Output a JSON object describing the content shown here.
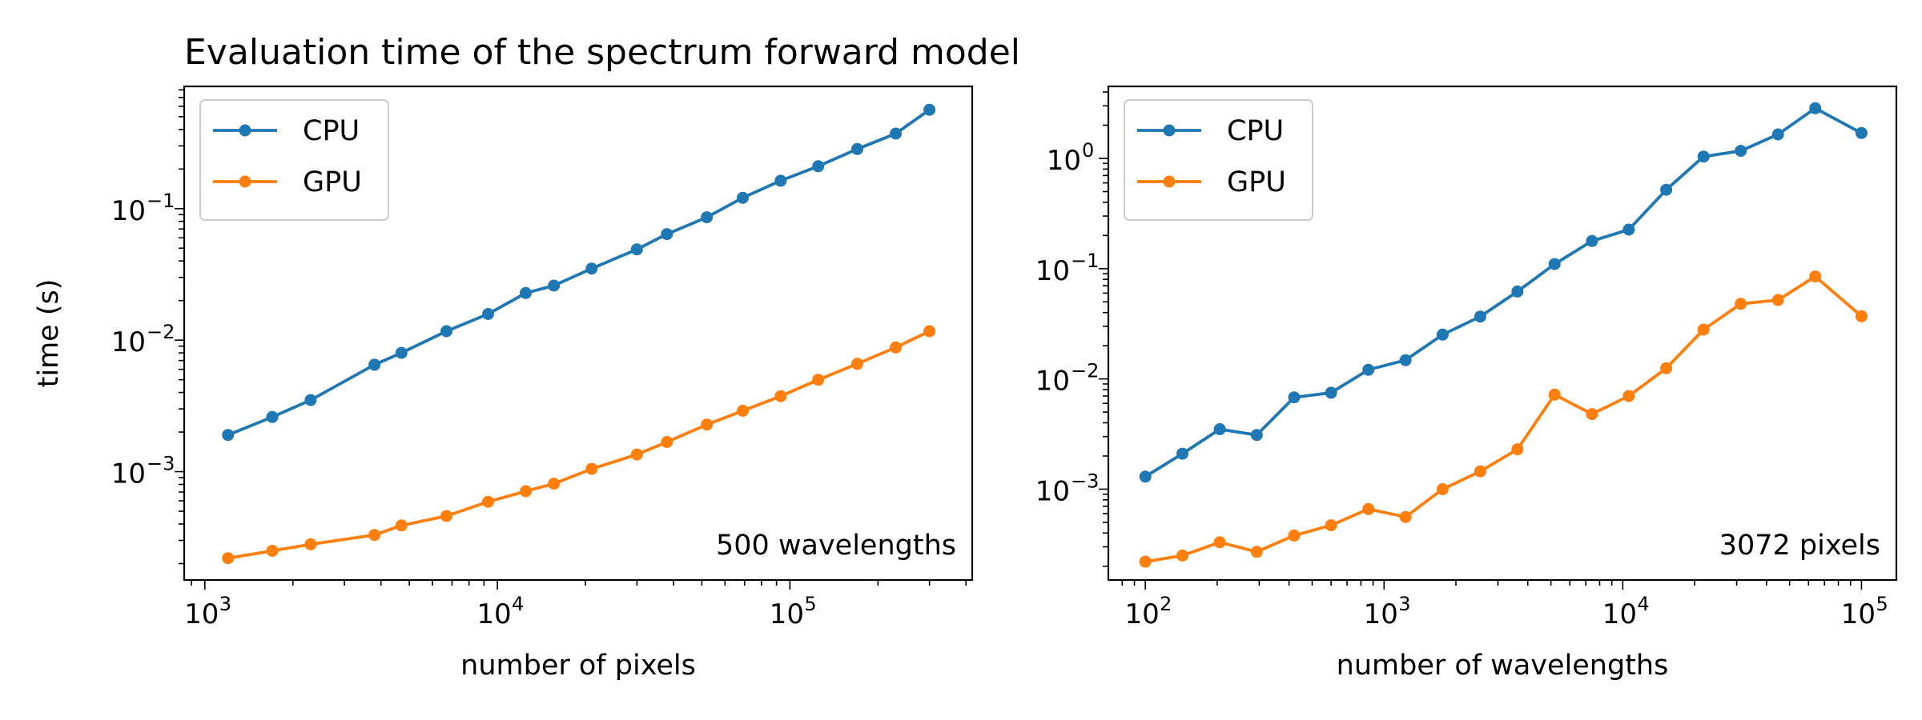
{
  "chart_data": [
    {
      "type": "line",
      "title": "Evaluation time of the spectrum forward model",
      "xlabel": "number of pixels",
      "ylabel": "time (s)",
      "xscale": "log",
      "yscale": "log",
      "xlim": [
        850,
        420000
      ],
      "ylim": [
        0.00015,
        0.85
      ],
      "x_ticks": [
        {
          "base": "10",
          "exp": "3",
          "value": 1000
        },
        {
          "base": "10",
          "exp": "4",
          "value": 10000
        },
        {
          "base": "10",
          "exp": "5",
          "value": 100000
        }
      ],
      "y_ticks": [
        {
          "base": "10",
          "exp": "−3",
          "value": 0.001
        },
        {
          "base": "10",
          "exp": "−2",
          "value": 0.01
        },
        {
          "base": "10",
          "exp": "−1",
          "value": 0.1
        }
      ],
      "legend": "upper-left",
      "annotation": "500 wavelengths",
      "x": [
        1200,
        1700,
        2300,
        3800,
        4700,
        6700,
        9300,
        12500,
        15600,
        21000,
        30000,
        38000,
        52000,
        69000,
        93000,
        125000,
        170000,
        230000,
        300000
      ],
      "series": [
        {
          "name": "CPU",
          "color": "#1f77b4",
          "values": [
            0.0019,
            0.0026,
            0.0035,
            0.0065,
            0.008,
            0.0117,
            0.0158,
            0.0228,
            0.026,
            0.035,
            0.049,
            0.064,
            0.086,
            0.121,
            0.163,
            0.21,
            0.284,
            0.372,
            0.565
          ]
        },
        {
          "name": "GPU",
          "color": "#ff7f0e",
          "values": [
            0.00022,
            0.00025,
            0.00028,
            0.00033,
            0.00039,
            0.00046,
            0.00059,
            0.00071,
            0.00081,
            0.00105,
            0.00135,
            0.00168,
            0.00228,
            0.0029,
            0.00375,
            0.005,
            0.0066,
            0.0088,
            0.0117
          ]
        }
      ]
    },
    {
      "type": "line",
      "title": "",
      "xlabel": "number of wavelengths",
      "ylabel": "",
      "xscale": "log",
      "yscale": "log",
      "xlim": [
        70,
        140000
      ],
      "ylim": [
        0.00015,
        4.5
      ],
      "x_ticks": [
        {
          "base": "10",
          "exp": "2",
          "value": 100
        },
        {
          "base": "10",
          "exp": "3",
          "value": 1000
        },
        {
          "base": "10",
          "exp": "4",
          "value": 10000
        },
        {
          "base": "10",
          "exp": "5",
          "value": 100000
        }
      ],
      "y_ticks": [
        {
          "base": "10",
          "exp": "−3",
          "value": 0.001
        },
        {
          "base": "10",
          "exp": "−2",
          "value": 0.01
        },
        {
          "base": "10",
          "exp": "−1",
          "value": 0.1
        },
        {
          "base": "10",
          "exp": "0",
          "value": 1
        }
      ],
      "legend": "upper-left",
      "annotation": "3072 pixels",
      "x": [
        100,
        143,
        205,
        293,
        420,
        600,
        860,
        1230,
        1760,
        2530,
        3620,
        5180,
        7430,
        10600,
        15200,
        21800,
        31200,
        44700,
        64000,
        100000
      ],
      "series": [
        {
          "name": "CPU",
          "color": "#1f77b4",
          "values": [
            0.0013,
            0.0021,
            0.0035,
            0.0031,
            0.0068,
            0.0075,
            0.0121,
            0.0148,
            0.0252,
            0.0368,
            0.062,
            0.11,
            0.178,
            0.226,
            0.52,
            1.04,
            1.17,
            1.65,
            2.85,
            1.7
          ]
        },
        {
          "name": "GPU",
          "color": "#ff7f0e",
          "values": [
            0.00022,
            0.00025,
            0.00033,
            0.00027,
            0.00038,
            0.00047,
            0.00066,
            0.00056,
            0.001,
            0.00145,
            0.0023,
            0.0072,
            0.0048,
            0.007,
            0.0125,
            0.028,
            0.048,
            0.052,
            0.085,
            0.037
          ]
        }
      ]
    }
  ]
}
